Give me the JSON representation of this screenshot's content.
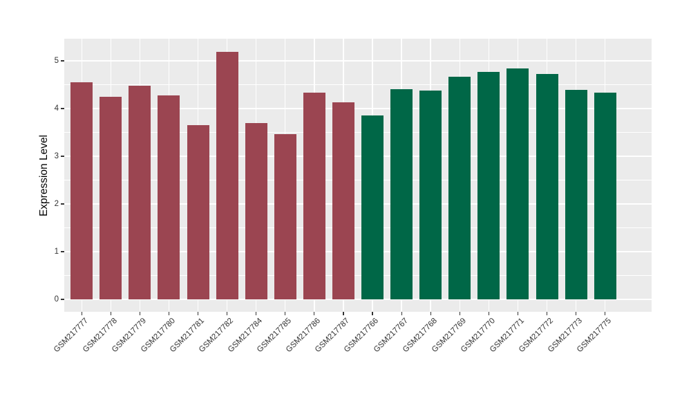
{
  "chart_data": {
    "type": "bar",
    "title": "",
    "xlabel": "",
    "ylabel": "Expression Level",
    "categories": [
      "GSM217777",
      "GSM217778",
      "GSM217779",
      "GSM217780",
      "GSM217781",
      "GSM217782",
      "GSM217784",
      "GSM217785",
      "GSM217786",
      "GSM217787",
      "GSM217766",
      "GSM217767",
      "GSM217768",
      "GSM217769",
      "GSM217770",
      "GSM217771",
      "GSM217772",
      "GSM217773",
      "GSM217775"
    ],
    "values": [
      4.55,
      4.24,
      4.48,
      4.27,
      3.65,
      5.19,
      3.69,
      3.46,
      4.33,
      4.13,
      3.85,
      4.4,
      4.38,
      4.67,
      4.77,
      4.84,
      4.72,
      4.39,
      4.33
    ],
    "bar_colors": [
      "#9b4551",
      "#9b4551",
      "#9b4551",
      "#9b4551",
      "#9b4551",
      "#9b4551",
      "#9b4551",
      "#9b4551",
      "#9b4551",
      "#9b4551",
      "#006747",
      "#006747",
      "#006747",
      "#006747",
      "#006747",
      "#006747",
      "#006747",
      "#006747",
      "#006747"
    ],
    "group_colors": {
      "left_group": "#9b4551",
      "right_group": "#006747"
    },
    "group_sizes": [
      10,
      9
    ],
    "ylim": [
      0,
      5.46
    ],
    "yticks": [
      0,
      1,
      2,
      3,
      4,
      5
    ],
    "y_minor_ticks": [
      0.5,
      1.5,
      2.5,
      3.5,
      4.5
    ],
    "grid": true,
    "legend": "none",
    "panel_background": "#ebebeb",
    "gridline_color": "#ffffff",
    "tick_color": "#333333",
    "tick_label_color": "#333333",
    "axis_title_color": "#000000"
  }
}
